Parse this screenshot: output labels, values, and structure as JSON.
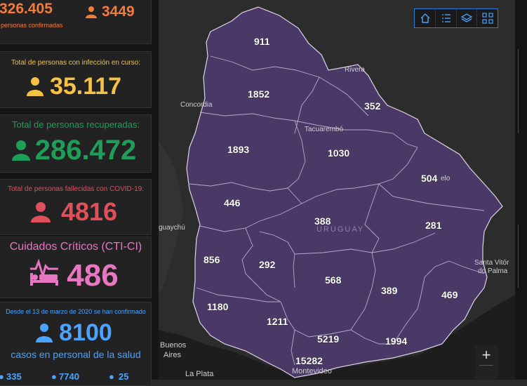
{
  "stats": {
    "top": {
      "value_left": "326.405",
      "sub_left": "personas confirmadas",
      "value_right": "3449"
    },
    "active": {
      "label": "Total de personas con infección en curso:",
      "value": "35.117"
    },
    "recovered": {
      "label": "Total de personas recuperadas:",
      "value": "286.472"
    },
    "deceased": {
      "label": "Total de personas fallecidas con COVID-19:",
      "value": "4816"
    },
    "critical": {
      "label": "Cuidados Críticos (CTI-CI)",
      "value": "486"
    },
    "health": {
      "label_top": "Desde el 13 de marzo de 2020 se han confirmado",
      "value": "8100",
      "label_bottom": "casos en personal de la salud",
      "sub_values": [
        "335",
        "7740",
        "25"
      ]
    }
  },
  "map": {
    "country_label": "URUGUAY",
    "counts": [
      "911",
      "1852",
      "352",
      "1893",
      "1030",
      "504",
      "446",
      "388",
      "281",
      "856",
      "292",
      "568",
      "389",
      "469",
      "1180",
      "1211",
      "5219",
      "1994",
      "15282"
    ],
    "places": [
      "Rivera",
      "Concordia",
      "Tacuarembó",
      "elo",
      "guaychú",
      "Santa Vitór",
      "do Palma",
      "Buenos",
      "Aires",
      "La Plata",
      "Montevideo"
    ]
  },
  "toolbar": {
    "icons": [
      "home-icon",
      "list-icon",
      "layers-icon",
      "qr-icon"
    ]
  },
  "zoom": {
    "in": "+"
  },
  "colors": {
    "orange": "#f47b3c",
    "yellow": "#f6c244",
    "green": "#1f9e5a",
    "red": "#e0505a",
    "pink": "#e877c2",
    "blue": "#4aa3ff",
    "region": "#4a3866",
    "accent": "#2a7bd6"
  }
}
